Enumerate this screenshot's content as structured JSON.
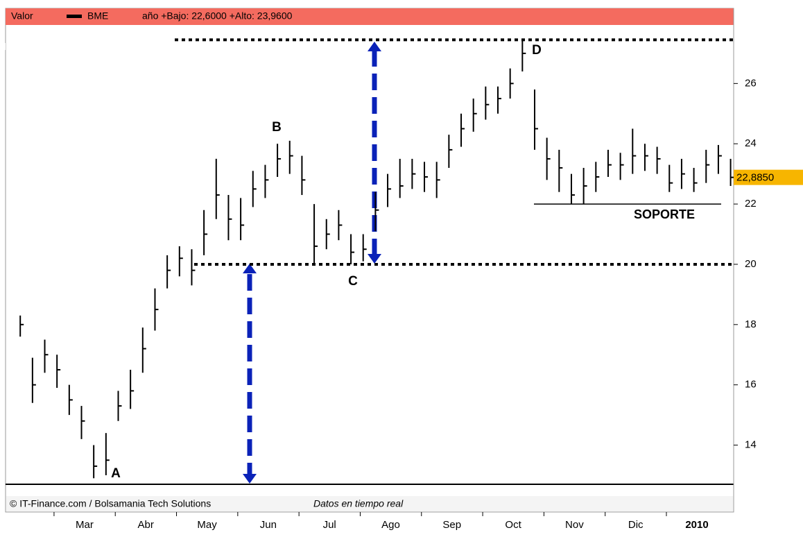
{
  "chart_data": {
    "type": "ohlc",
    "header": {
      "label": "Valor",
      "symbol": "BME",
      "range": "año +Bajo: 22,6000 +Alto: 23,9600"
    },
    "footer": {
      "credit": "© IT-Finance.com / Bolsamania Tech Solutions",
      "note": "Datos en tiempo real"
    },
    "x": [
      1.95,
      2.15,
      2.35,
      2.55,
      2.75,
      2.95,
      3.15,
      3.35,
      3.55,
      3.75,
      3.95,
      4.15,
      4.35,
      4.55,
      4.75,
      4.95,
      5.15,
      5.35,
      5.55,
      5.75,
      5.95,
      6.15,
      6.35,
      6.55,
      6.75,
      6.95,
      7.15,
      7.35,
      7.55,
      7.75,
      7.95,
      8.15,
      8.35,
      8.55,
      8.75,
      8.95,
      9.15,
      9.35,
      9.55,
      9.75,
      9.95,
      10.15,
      10.35,
      10.55,
      10.75,
      10.95,
      11.15,
      11.35,
      11.55,
      11.75,
      11.95,
      12.15,
      12.35,
      12.55,
      12.75,
      12.95,
      13.15,
      13.35,
      13.55
    ],
    "high": [
      18.3,
      16.9,
      17.5,
      17.0,
      16.0,
      15.3,
      14.0,
      14.4,
      15.8,
      16.5,
      17.9,
      19.2,
      20.3,
      20.6,
      20.5,
      21.8,
      23.5,
      22.3,
      22.2,
      23.1,
      23.3,
      24.0,
      24.1,
      23.6,
      22.0,
      21.5,
      21.8,
      21.0,
      21.0,
      22.4,
      23.0,
      23.5,
      23.5,
      23.4,
      23.4,
      24.3,
      25.0,
      25.5,
      25.9,
      25.9,
      26.5,
      27.45,
      25.8,
      24.2,
      23.8,
      23.0,
      23.2,
      23.4,
      23.8,
      23.7,
      24.5,
      24.0,
      23.9,
      23.3,
      23.5,
      23.2,
      23.8,
      23.96,
      23.5
    ],
    "low": [
      17.6,
      15.4,
      16.4,
      15.9,
      15.0,
      14.2,
      12.9,
      13.0,
      14.8,
      15.2,
      16.4,
      17.8,
      19.2,
      19.6,
      19.3,
      20.3,
      21.5,
      20.8,
      20.8,
      21.9,
      22.2,
      22.9,
      23.0,
      22.3,
      20.0,
      20.5,
      20.8,
      20.0,
      20.1,
      21.1,
      21.9,
      22.2,
      22.5,
      22.4,
      22.2,
      23.2,
      23.9,
      24.4,
      24.8,
      25.0,
      25.5,
      26.4,
      23.8,
      22.8,
      22.4,
      22.0,
      22.0,
      22.4,
      22.9,
      22.8,
      23.0,
      23.1,
      23.0,
      22.4,
      22.5,
      22.4,
      22.7,
      23.0,
      22.6
    ],
    "close": [
      18.0,
      16.0,
      17.0,
      16.5,
      15.5,
      14.8,
      13.3,
      13.5,
      15.3,
      15.8,
      17.2,
      18.5,
      19.8,
      20.2,
      19.8,
      21.0,
      22.3,
      21.5,
      21.3,
      22.5,
      22.8,
      23.5,
      23.6,
      22.8,
      20.6,
      21.0,
      21.3,
      20.4,
      20.5,
      21.8,
      22.5,
      22.6,
      23.0,
      22.9,
      22.8,
      23.8,
      24.5,
      25.0,
      25.3,
      25.5,
      26.0,
      27.0,
      24.5,
      23.5,
      23.2,
      22.3,
      22.6,
      22.9,
      23.3,
      23.3,
      23.6,
      23.6,
      23.5,
      22.7,
      23.0,
      22.7,
      23.3,
      23.6,
      22.885
    ],
    "color": "#000000",
    "current": {
      "value": 22.885,
      "label": "22,8850"
    },
    "xlim": [
      1.71,
      13.6
    ],
    "xticks": [
      {
        "value": 3,
        "label": "Mar"
      },
      {
        "value": 4,
        "label": "Abr"
      },
      {
        "value": 5,
        "label": "May"
      },
      {
        "value": 6,
        "label": "Jun"
      },
      {
        "value": 7,
        "label": "Jul"
      },
      {
        "value": 8,
        "label": "Ago"
      },
      {
        "value": 9,
        "label": "Sep"
      },
      {
        "value": 10,
        "label": "Oct"
      },
      {
        "value": 11,
        "label": "Nov"
      },
      {
        "value": 12,
        "label": "Dic"
      },
      {
        "value": 13,
        "label": "2010"
      }
    ],
    "ylim": [
      12.7,
      27.85
    ],
    "yticks": [
      14,
      16,
      18,
      20,
      22,
      24,
      26
    ],
    "reference_lines": [
      27.45,
      20.0
    ],
    "support": {
      "value": 22.0,
      "label": "SOPORTE"
    },
    "annotations": [
      "A",
      "B",
      "C",
      "D"
    ]
  }
}
